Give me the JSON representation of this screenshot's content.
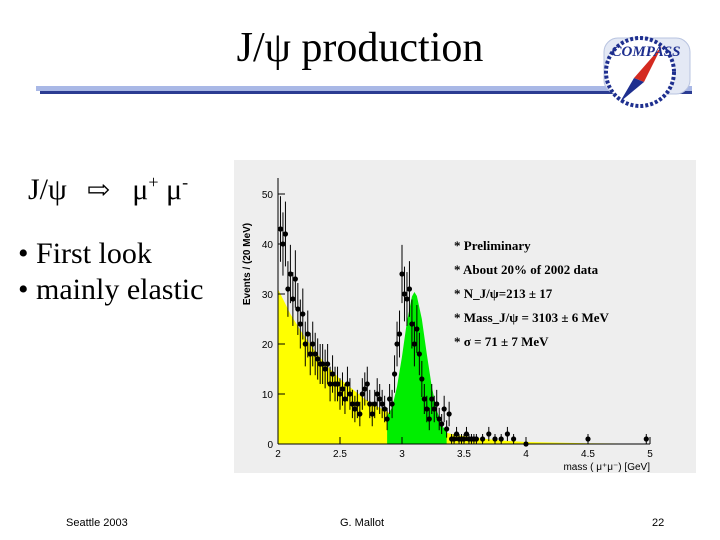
{
  "slide": {
    "title": "J/ψ production",
    "logo_text": "COMPASS",
    "reaction": {
      "lhs": "J/ψ",
      "arrow": "⇨",
      "mu1": "μ",
      "sup1": "+",
      "mu2": "μ",
      "sup2": "-"
    },
    "bullets": [
      "• First look",
      "• mainly elastic"
    ],
    "footer": {
      "left": "Seattle 2003",
      "center": "G. Mallot",
      "right": "22"
    },
    "colors": {
      "title_bar": "#a9b8e6",
      "title_bar_shadow": "#2b3c92",
      "background_fill": "#ffff00",
      "signal_fill": "#00ee00",
      "plot_bg": "#eeeeee"
    }
  },
  "chart_data": {
    "type": "scatter",
    "xlabel": "mass ( μ⁺μ⁻) [GeV]",
    "ylabel": "Events / (20 MeV)",
    "xlim": [
      2,
      5
    ],
    "ylim": [
      0,
      52
    ],
    "xticks": [
      "2",
      "2.5",
      "3",
      "3.5",
      "4",
      "4.5",
      "5"
    ],
    "yticks": [
      "0",
      "10",
      "20",
      "30",
      "40",
      "50"
    ],
    "annotations": [
      "* Preliminary",
      "* About 20% of 2002 data",
      "* N_J/ψ=213 ± 17",
      "* Mass_J/ψ = 3103 ± 6 MeV",
      "* σ = 71 ± 7 MeV"
    ],
    "background_fill": {
      "x": [
        2.0,
        2.1,
        2.2,
        2.3,
        2.4,
        2.5,
        2.6,
        2.7,
        2.8,
        2.9,
        3.0,
        3.1,
        3.2,
        3.3,
        3.4,
        3.6,
        3.8,
        4.0,
        4.5,
        5.0
      ],
      "y": [
        31,
        26,
        22,
        18.5,
        15.5,
        13,
        11,
        9,
        7.5,
        6.2,
        5.1,
        4.1,
        3.3,
        2.6,
        2.0,
        1.2,
        0.7,
        0.4,
        0.15,
        0.05
      ]
    },
    "signal_fill": {
      "x": [
        2.88,
        2.92,
        2.96,
        3.0,
        3.04,
        3.08,
        3.1,
        3.12,
        3.16,
        3.2,
        3.24,
        3.28,
        3.32,
        3.36
      ],
      "y": [
        5.6,
        7.3,
        11.5,
        17.5,
        24.5,
        29.5,
        30.4,
        29.6,
        25,
        18,
        11.5,
        6.8,
        3.8,
        2.4
      ]
    },
    "points": {
      "x": [
        2.02,
        2.04,
        2.06,
        2.08,
        2.1,
        2.12,
        2.14,
        2.16,
        2.18,
        2.2,
        2.22,
        2.24,
        2.26,
        2.28,
        2.3,
        2.32,
        2.34,
        2.36,
        2.38,
        2.4,
        2.42,
        2.44,
        2.46,
        2.48,
        2.5,
        2.52,
        2.54,
        2.56,
        2.58,
        2.6,
        2.62,
        2.64,
        2.66,
        2.68,
        2.7,
        2.72,
        2.74,
        2.76,
        2.78,
        2.8,
        2.82,
        2.84,
        2.86,
        2.88,
        2.9,
        2.92,
        2.94,
        2.96,
        2.98,
        3.0,
        3.02,
        3.04,
        3.06,
        3.08,
        3.1,
        3.12,
        3.14,
        3.16,
        3.18,
        3.2,
        3.22,
        3.24,
        3.26,
        3.28,
        3.3,
        3.32,
        3.34,
        3.36,
        3.38,
        3.4,
        3.42,
        3.44,
        3.46,
        3.48,
        3.5,
        3.52,
        3.54,
        3.56,
        3.58,
        3.6,
        3.65,
        3.7,
        3.75,
        3.8,
        3.85,
        3.9,
        4.0,
        4.5,
        4.97
      ],
      "y": [
        43,
        40,
        42,
        31,
        34,
        29,
        33,
        27,
        24,
        26,
        20,
        22,
        18,
        20,
        18,
        17,
        16,
        16,
        15,
        16,
        12,
        14,
        12,
        12,
        10,
        11,
        9,
        12,
        10,
        8,
        7,
        8,
        6,
        10,
        11,
        12,
        8,
        6,
        8,
        10,
        9,
        8,
        7,
        5,
        9,
        8,
        14,
        20,
        22,
        34,
        30,
        29,
        31,
        24,
        20,
        23,
        18,
        13,
        9,
        7,
        5,
        9,
        7,
        8,
        5,
        4,
        7,
        3,
        6,
        1,
        1,
        2,
        1,
        1,
        1,
        2,
        1,
        1,
        1,
        1,
        1,
        2,
        1,
        1,
        2,
        1,
        0,
        1,
        1
      ]
    }
  }
}
